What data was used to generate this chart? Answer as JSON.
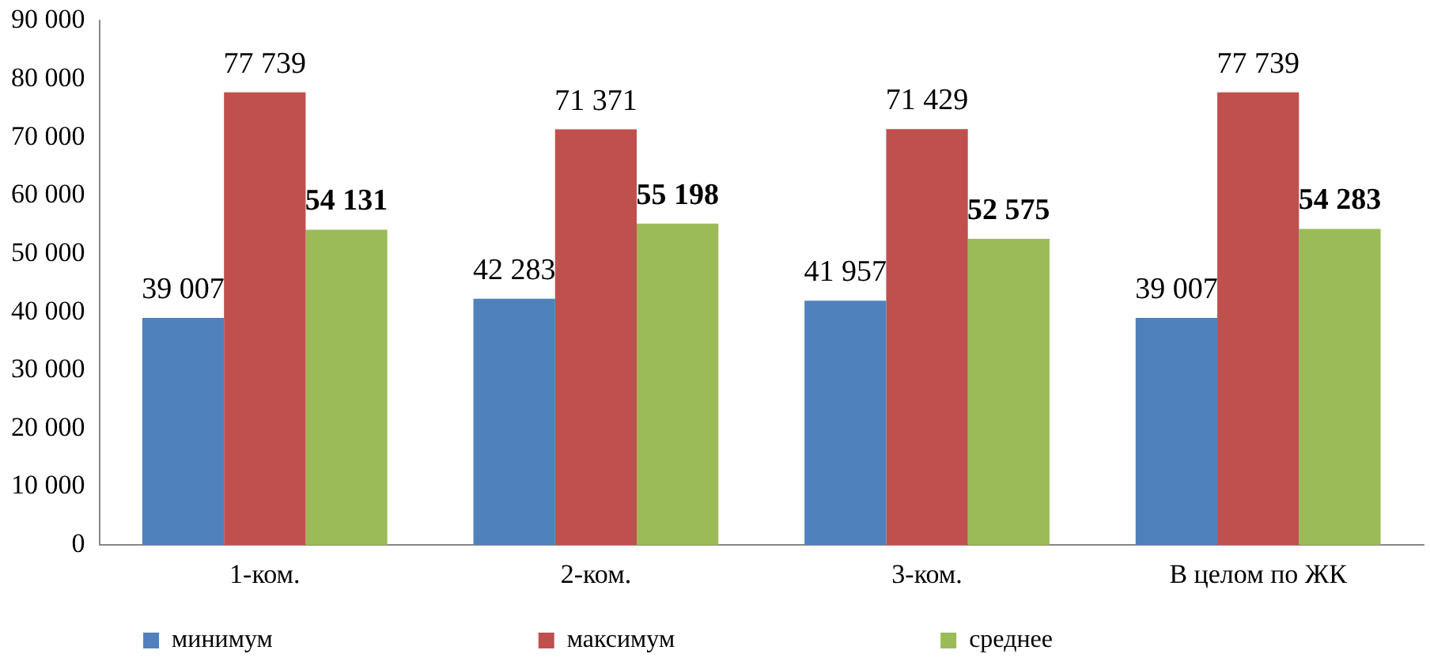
{
  "chart_data": {
    "type": "bar",
    "categories": [
      "1-ком.",
      "2-ком.",
      "3-ком.",
      "В целом по ЖК"
    ],
    "series": [
      {
        "name": "минимум",
        "color": "#4f81bd",
        "values": [
          39007,
          42283,
          41957,
          39007
        ]
      },
      {
        "name": "максимум",
        "color": "#c0504d",
        "values": [
          77739,
          71371,
          71429,
          77739
        ]
      },
      {
        "name": "среднее",
        "color": "#9bbb59",
        "values": [
          54131,
          55198,
          52575,
          54283
        ]
      }
    ],
    "ylim": [
      0,
      90000
    ],
    "yticks": [
      {
        "value": 0,
        "label": "0"
      },
      {
        "value": 10000,
        "label": "10 000"
      },
      {
        "value": 20000,
        "label": "20 000"
      },
      {
        "value": 30000,
        "label": "30 000"
      },
      {
        "value": 40000,
        "label": "40 000"
      },
      {
        "value": 50000,
        "label": "50 000"
      },
      {
        "value": 60000,
        "label": "60 000"
      },
      {
        "value": 70000,
        "label": "70 000"
      },
      {
        "value": 80000,
        "label": "80 000"
      },
      {
        "value": 90000,
        "label": "90 000"
      }
    ],
    "data_labels": true,
    "grid": false,
    "legend": "bottom"
  }
}
